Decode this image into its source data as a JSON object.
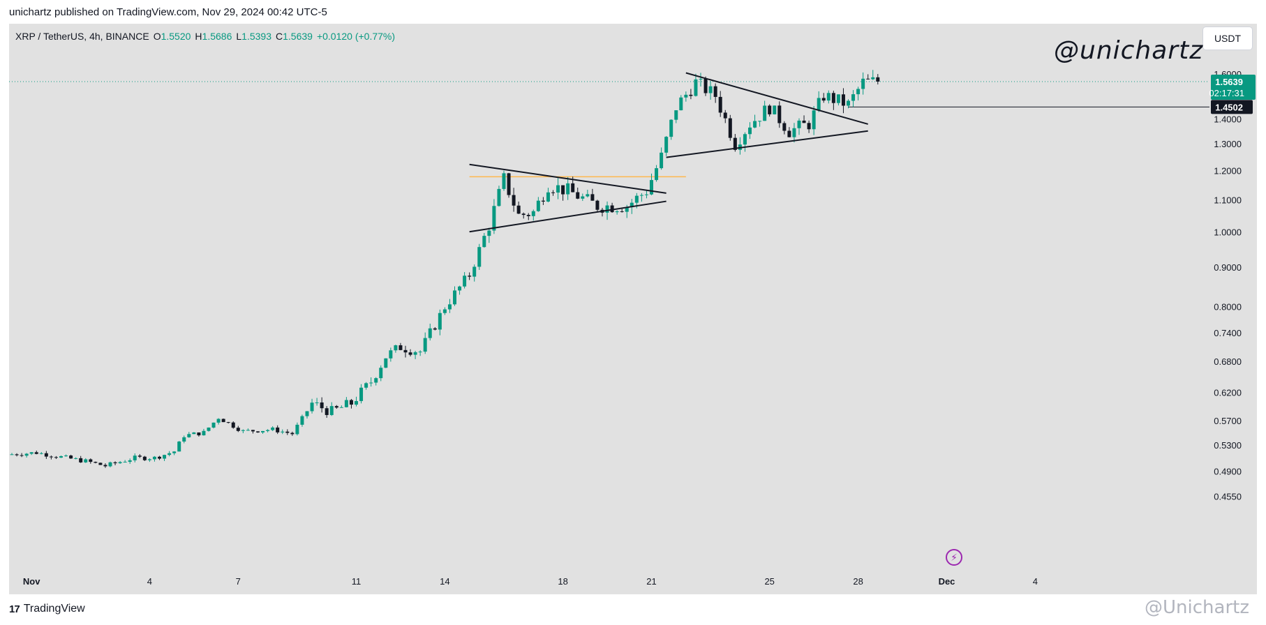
{
  "header": {
    "published_text": "unichartz published on TradingView.com, Nov 29, 2024 00:42 UTC-5"
  },
  "legend": {
    "symbol": "XRP / TetherUS, 4h, BINANCE",
    "open_label": "O",
    "open": "1.5520",
    "high_label": "H",
    "high": "1.5686",
    "low_label": "L",
    "low": "1.5393",
    "close_label": "C",
    "close": "1.5639",
    "change": "+0.0120 (+0.77%)"
  },
  "currency_button": "USDT",
  "watermark": "@unichartz",
  "footer": {
    "logo_mark": "17",
    "logo_text": "TradingView",
    "watermark": "@Unichartz"
  },
  "colors": {
    "up": "#089981",
    "down": "#131722",
    "background": "#e1e1e1",
    "price_tag": "#089981",
    "resistance": "#ffb74d"
  },
  "chart_data": {
    "type": "candlestick",
    "scale": "log",
    "ylim": [
      0.43,
      1.72
    ],
    "y_ticks": [
      "1.6000",
      "1.4000",
      "1.3000",
      "1.2000",
      "1.1000",
      "1.0000",
      "0.9000",
      "0.8000",
      "0.7400",
      "0.6800",
      "0.6200",
      "0.5700",
      "0.5300",
      "0.4900",
      "0.4550"
    ],
    "x_ticks": [
      {
        "label": "Nov",
        "bar": 4
      },
      {
        "label": "4",
        "bar": 28
      },
      {
        "label": "7",
        "bar": 46
      },
      {
        "label": "11",
        "bar": 70
      },
      {
        "label": "14",
        "bar": 88
      },
      {
        "label": "18",
        "bar": 112
      },
      {
        "label": "21",
        "bar": 130
      },
      {
        "label": "25",
        "bar": 154
      },
      {
        "label": "28",
        "bar": 172
      },
      {
        "label": "Dec",
        "bar": 190
      },
      {
        "label": "4",
        "bar": 208
      }
    ],
    "current_price": {
      "value": 1.5639,
      "label": "1.5639",
      "countdown": "02:17:31"
    },
    "horizontal_level": {
      "value": 1.4502,
      "label": "1.4502"
    },
    "resistance_level": {
      "value": 1.178,
      "from_bar": 93,
      "to_bar": 137
    },
    "trendlines": [
      {
        "from": [
          93,
          1.222
        ],
        "to": [
          133,
          1.122
        ]
      },
      {
        "from": [
          93,
          1.0
        ],
        "to": [
          133,
          1.095
        ]
      },
      {
        "from": [
          137,
          1.605
        ],
        "to": [
          174,
          1.378
        ]
      },
      {
        "from": [
          133,
          1.248
        ],
        "to": [
          174,
          1.35
        ]
      }
    ],
    "anchors": [
      [
        0,
        0.515
      ],
      [
        6,
        0.518
      ],
      [
        12,
        0.51
      ],
      [
        16,
        0.505
      ],
      [
        20,
        0.498
      ],
      [
        26,
        0.51
      ],
      [
        30,
        0.51
      ],
      [
        34,
        0.52
      ],
      [
        36,
        0.545
      ],
      [
        40,
        0.55
      ],
      [
        43,
        0.575
      ],
      [
        48,
        0.552
      ],
      [
        54,
        0.555
      ],
      [
        58,
        0.548
      ],
      [
        62,
        0.6
      ],
      [
        66,
        0.585
      ],
      [
        70,
        0.6
      ],
      [
        74,
        0.64
      ],
      [
        77,
        0.69
      ],
      [
        80,
        0.71
      ],
      [
        84,
        0.7
      ],
      [
        89,
        0.8
      ],
      [
        94,
        0.88
      ],
      [
        98,
        1.02
      ],
      [
        101,
        1.17
      ],
      [
        104,
        1.05
      ],
      [
        107,
        1.06
      ],
      [
        110,
        1.15
      ],
      [
        114,
        1.13
      ],
      [
        120,
        1.08
      ],
      [
        126,
        1.08
      ],
      [
        130,
        1.13
      ],
      [
        133,
        1.25
      ],
      [
        136,
        1.45
      ],
      [
        140,
        1.56
      ],
      [
        144,
        1.5
      ],
      [
        148,
        1.3
      ],
      [
        151,
        1.38
      ],
      [
        155,
        1.45
      ],
      [
        159,
        1.35
      ],
      [
        163,
        1.38
      ],
      [
        166,
        1.5
      ],
      [
        171,
        1.46
      ],
      [
        174,
        1.56
      ],
      [
        176,
        1.5639
      ]
    ]
  }
}
